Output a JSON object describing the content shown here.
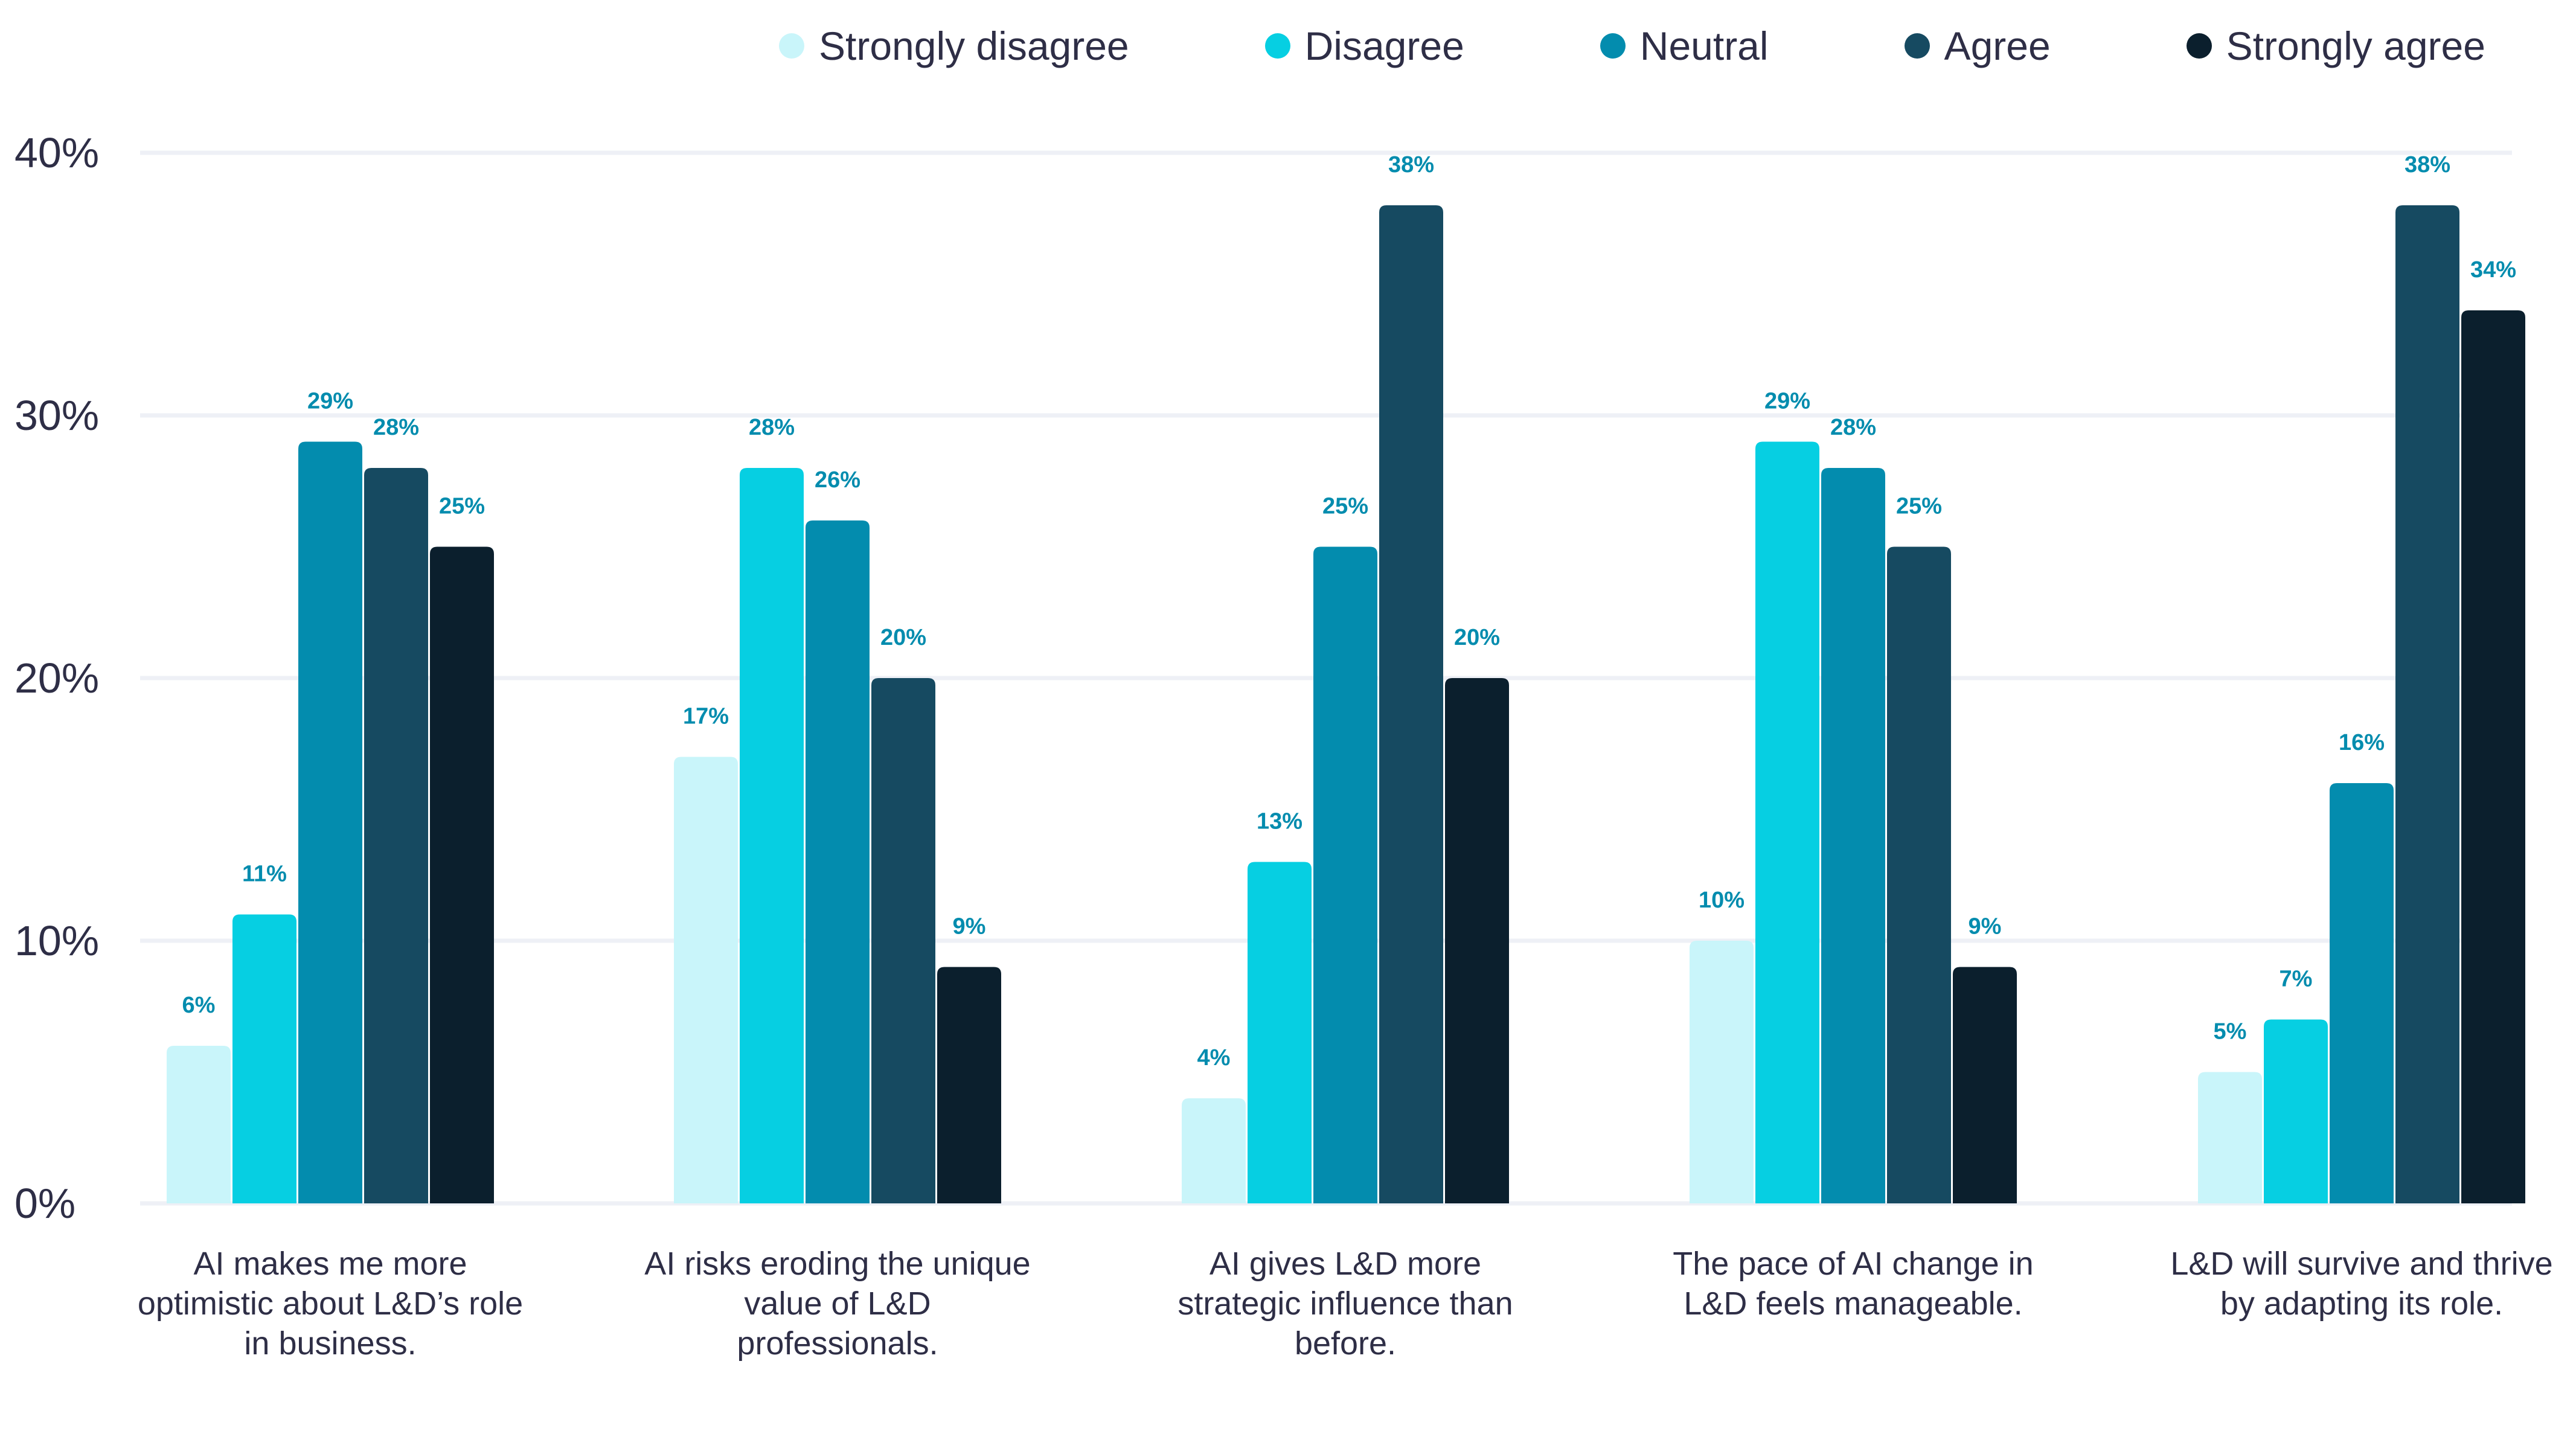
{
  "chart_data": {
    "type": "bar",
    "categories": [
      "AI makes me more optimistic about L&D’s role in business.",
      "AI risks eroding the unique value of L&D professionals.",
      "AI gives L&D more strategic influence than before.",
      "The pace of AI change in L&D feels manageable.",
      "L&D will survive and thrive by adapting its role."
    ],
    "series": [
      {
        "name": "Strongly disagree",
        "color": "#c9f5fa",
        "values": [
          6,
          17,
          4,
          10,
          5
        ]
      },
      {
        "name": "Disagree",
        "color": "#06cfe2",
        "values": [
          11,
          28,
          13,
          29,
          7
        ]
      },
      {
        "name": "Neutral",
        "color": "#038cae",
        "values": [
          29,
          26,
          25,
          28,
          16
        ]
      },
      {
        "name": "Agree",
        "color": "#164a61",
        "values": [
          28,
          20,
          38,
          25,
          38
        ]
      },
      {
        "name": "Strongly agree",
        "color": "#0b1f2d",
        "values": [
          25,
          9,
          20,
          9,
          34
        ]
      }
    ],
    "display_values": [
      [
        6,
        11,
        29,
        28,
        25
      ],
      [
        17,
        28,
        26,
        20,
        9
      ],
      [
        4,
        13,
        25,
        38,
        20
      ],
      [
        10,
        29,
        28,
        25,
        9
      ],
      [
        5,
        7,
        16,
        38,
        34
      ]
    ],
    "value_suffix": "%",
    "yticks": [
      "0%",
      "10%",
      "20%",
      "30%",
      "40%"
    ],
    "ylim": [
      0,
      40
    ],
    "grid": true,
    "legend_position": "top",
    "xlabel": "",
    "ylabel": "",
    "title": "",
    "label_color": "#038cae",
    "axis_text_color": "#2e2e46",
    "grid_color": "#eef0f6"
  }
}
